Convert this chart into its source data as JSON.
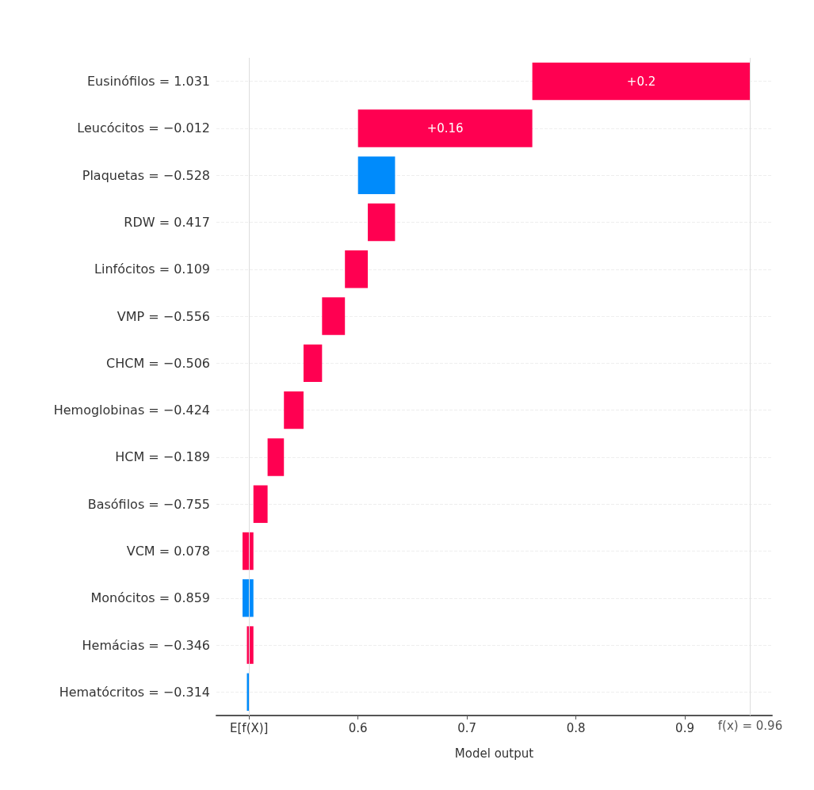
{
  "chart_data": {
    "type": "bar",
    "orientation": "horizontal",
    "xlabel": "Model output",
    "categories": [
      "Eusinófilos = 1.031",
      "Leucócitos = −0.012",
      "Plaquetas = −0.528",
      "RDW = 0.417",
      "Linfócitos = 0.109",
      "VMP = −0.556",
      "CHCM = −0.506",
      "Hemoglobinas = −0.424",
      "HCM = −0.189",
      "Basófilos = −0.755",
      "VCM = 0.078",
      "Monócitos = 0.859",
      "Hemácias = −0.346",
      "Hematócritos = −0.314"
    ],
    "values": [
      0.2,
      0.16,
      -0.034,
      0.025,
      0.021,
      0.021,
      0.017,
      0.018,
      0.015,
      0.013,
      0.01,
      -0.01,
      0.006,
      -0.002
    ],
    "base": [
      0.76,
      0.6,
      0.634,
      0.609,
      0.588,
      0.567,
      0.55,
      0.532,
      0.517,
      0.504,
      0.494,
      0.504,
      0.498,
      0.5
    ],
    "colors": [
      "#ff0051",
      "#ff0051",
      "#008bfb",
      "#ff0051",
      "#ff0051",
      "#ff0051",
      "#ff0051",
      "#ff0051",
      "#ff0051",
      "#ff0051",
      "#ff0051",
      "#008bfb",
      "#ff0051",
      "#008bfb"
    ],
    "value_labels": [
      "+0.2",
      "+0.16",
      null,
      null,
      null,
      null,
      null,
      null,
      null,
      null,
      null,
      null,
      null,
      null
    ],
    "xlim": [
      0.47,
      0.98
    ],
    "xticks": [
      {
        "value": 0.5,
        "label": "E[f(X)]"
      },
      0.6,
      0.7,
      0.8,
      0.9
    ],
    "ref_lines": [
      {
        "axis": "x",
        "value": 0.5,
        "label": null,
        "color": "#dddddd"
      },
      {
        "axis": "x",
        "value": 0.96,
        "label": "f(x) = 0.96",
        "color": "#dddddd"
      }
    ],
    "grid": "y"
  }
}
